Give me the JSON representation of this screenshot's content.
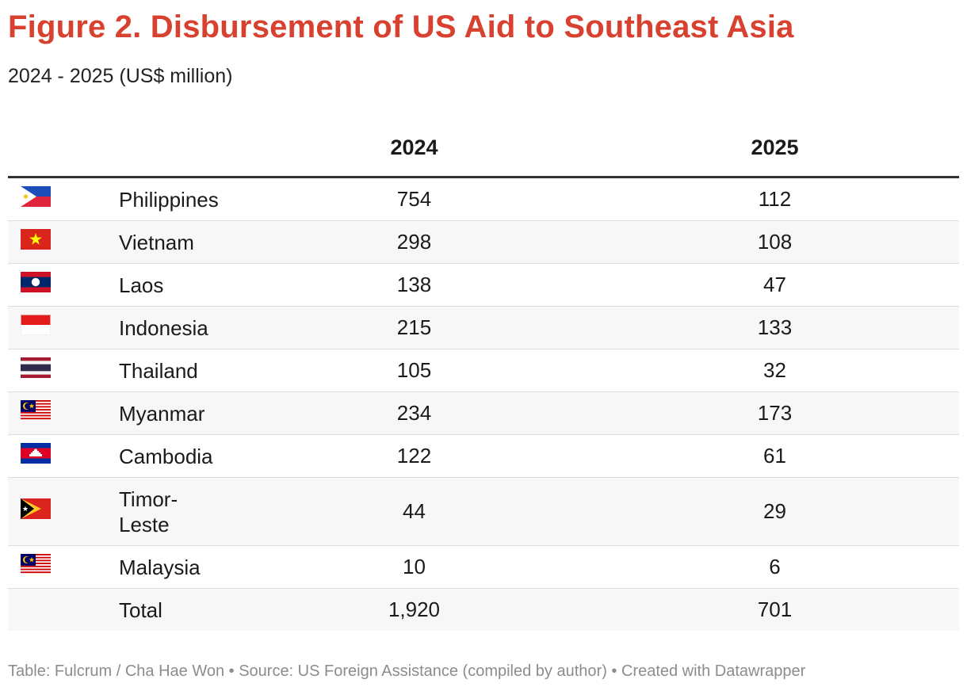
{
  "title": "Figure 2. Disbursement of US Aid to Southeast Asia",
  "subtitle": "2024 - 2025 (US$ million)",
  "accent_color": "#d8412f",
  "footer": "Table: Fulcrum / Cha Hae Won • Source: US Foreign Assistance (compiled by author) • Created with Datawrapper",
  "chart_data": {
    "type": "table",
    "title": "Figure 2. Disbursement of US Aid to Southeast Asia",
    "subtitle": "2024 - 2025 (US$ million)",
    "columns": [
      "",
      "",
      "2024",
      "2025"
    ],
    "rows": [
      {
        "flag": "philippines-flag-icon",
        "country": "Philippines",
        "y2024": "754",
        "y2025": "112"
      },
      {
        "flag": "vietnam-flag-icon",
        "country": "Vietnam",
        "y2024": "298",
        "y2025": "108"
      },
      {
        "flag": "laos-flag-icon",
        "country": "Laos",
        "y2024": "138",
        "y2025": "47"
      },
      {
        "flag": "indonesia-flag-icon",
        "country": "Indonesia",
        "y2024": "215",
        "y2025": "133"
      },
      {
        "flag": "thailand-flag-icon",
        "country": "Thailand",
        "y2024": "105",
        "y2025": "32"
      },
      {
        "flag": "malaysia-flag-icon",
        "country": "Myanmar",
        "y2024": "234",
        "y2025": "173"
      },
      {
        "flag": "cambodia-flag-icon",
        "country": "Cambodia",
        "y2024": "122",
        "y2025": "61"
      },
      {
        "flag": "timor-leste-flag-icon",
        "country": "Timor-\nLeste",
        "y2024": "44",
        "y2025": "29"
      },
      {
        "flag": "malaysia-flag-icon",
        "country": "Malaysia",
        "y2024": "10",
        "y2025": "6"
      },
      {
        "flag": "",
        "country": "Total",
        "y2024": "1,920",
        "y2025": "701"
      }
    ],
    "source": "US Foreign Assistance (compiled by author)"
  }
}
